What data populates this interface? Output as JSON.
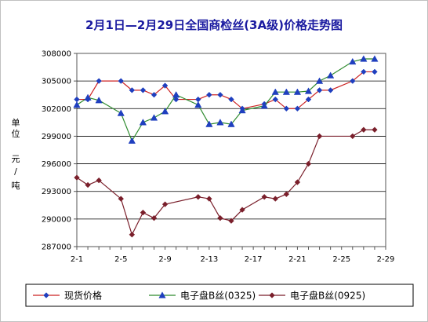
{
  "chart_data": {
    "type": "line",
    "title": "2月1日—2月29日全国商检丝(3A级)价格走势图",
    "ylabel": "单位  元/吨",
    "xlabel": "",
    "ylim": [
      287000,
      308000
    ],
    "yticks": [
      287000,
      290000,
      293000,
      296000,
      299000,
      302000,
      305000,
      308000
    ],
    "ytick_labels": [
      "287000",
      "290000",
      "293000",
      "296000",
      "299000",
      "302000",
      "305000",
      "308000"
    ],
    "xrange": [
      1,
      29
    ],
    "xticks": [
      1,
      5,
      9,
      13,
      17,
      21,
      25,
      29
    ],
    "xtick_labels": [
      "2-1",
      "2-5",
      "2-9",
      "2-13",
      "2-17",
      "2-21",
      "2-25",
      "2-29"
    ],
    "grid": "horizontal",
    "legend": "bottom",
    "series": [
      {
        "name": "现货价格",
        "color": "#cc2222",
        "marker_color": "#1f3fbf",
        "marker": "diamond",
        "x": [
          1,
          2,
          3,
          5,
          6,
          7,
          8,
          9,
          10,
          12,
          13,
          14,
          15,
          16,
          18,
          19,
          20,
          21,
          22,
          23,
          24,
          26,
          27,
          28
        ],
        "y": [
          303000,
          303000,
          305000,
          305000,
          304000,
          304000,
          303500,
          304500,
          303000,
          303000,
          303500,
          303500,
          303000,
          302000,
          302500,
          303000,
          302000,
          302000,
          303000,
          304000,
          304000,
          305000,
          306000,
          306000
        ]
      },
      {
        "name": "电子盘B丝(0325)",
        "color": "#2e8b2e",
        "marker_color": "#1f3fbf",
        "marker": "triangle",
        "x": [
          1,
          2,
          3,
          5,
          6,
          7,
          8,
          9,
          10,
          12,
          13,
          14,
          15,
          16,
          18,
          19,
          20,
          21,
          22,
          23,
          24,
          26,
          27,
          28
        ],
        "y": [
          302400,
          303200,
          302900,
          301500,
          298500,
          300500,
          301000,
          301700,
          303500,
          302400,
          300300,
          300500,
          300300,
          301800,
          302300,
          303800,
          303800,
          303800,
          303900,
          305000,
          305600,
          307100,
          307400,
          307400
        ]
      },
      {
        "name": "电子盘B丝(0925)",
        "color": "#7a1f2b",
        "marker_color": "#7a1f2b",
        "marker": "diamond",
        "x": [
          1,
          2,
          3,
          5,
          6,
          7,
          8,
          9,
          12,
          13,
          14,
          15,
          16,
          18,
          19,
          20,
          21,
          22,
          23,
          26,
          27,
          28
        ],
        "y": [
          294500,
          293700,
          294200,
          292200,
          288300,
          290700,
          290100,
          291600,
          292400,
          292200,
          290100,
          289800,
          291000,
          292400,
          292200,
          292700,
          294000,
          296000,
          299000,
          299000,
          299700,
          299700
        ]
      }
    ]
  }
}
